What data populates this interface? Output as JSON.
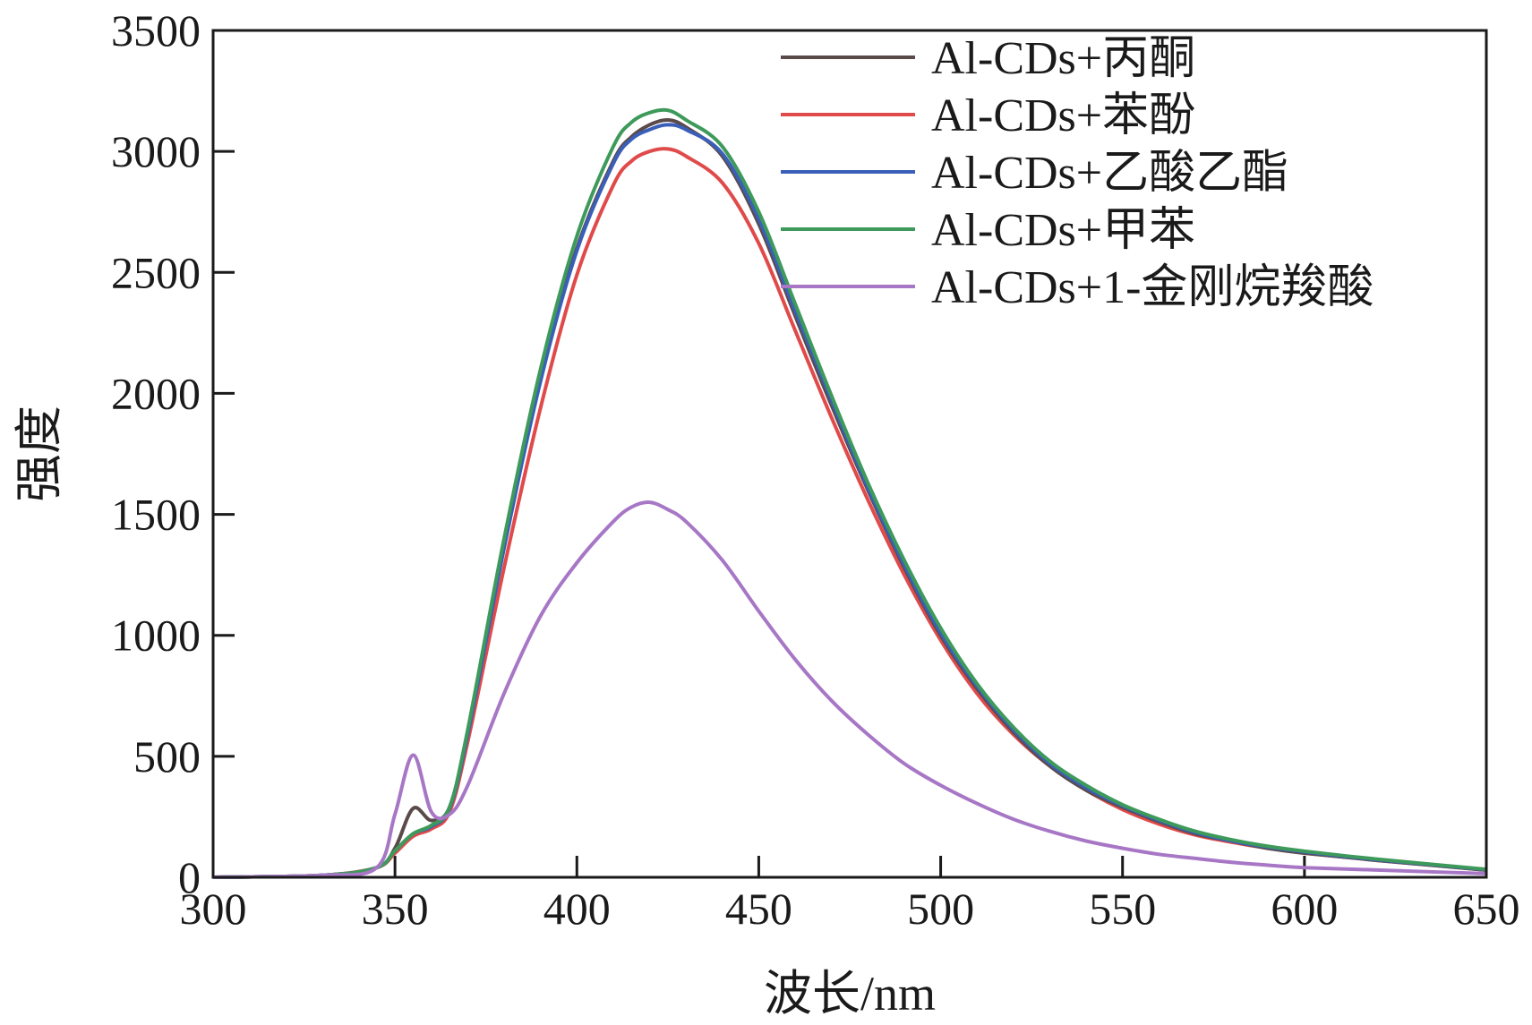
{
  "chart_data": {
    "type": "line",
    "xlabel": "波长/nm",
    "ylabel": "强度",
    "xlim": [
      300,
      650
    ],
    "ylim": [
      0,
      3500
    ],
    "x_ticks": [
      300,
      350,
      400,
      450,
      500,
      550,
      600,
      650
    ],
    "y_ticks": [
      0,
      500,
      1000,
      1500,
      2000,
      2500,
      3000,
      3500
    ],
    "grid": false,
    "legend_position": "top-right",
    "x": [
      300,
      330,
      345,
      350,
      355,
      360,
      365,
      370,
      380,
      390,
      400,
      410,
      415,
      420,
      425,
      430,
      440,
      450,
      460,
      470,
      480,
      490,
      500,
      510,
      520,
      530,
      540,
      550,
      560,
      570,
      580,
      590,
      600,
      620,
      650
    ],
    "series": [
      {
        "name": "Al-CDs+丙酮",
        "color": "#5b4a4a",
        "values": [
          0,
          8,
          40,
          120,
          285,
          235,
          290,
          600,
          1380,
          2070,
          2600,
          2960,
          3060,
          3110,
          3130,
          3100,
          2980,
          2700,
          2320,
          1950,
          1600,
          1280,
          1000,
          780,
          600,
          460,
          360,
          290,
          230,
          180,
          150,
          120,
          100,
          70,
          30
        ]
      },
      {
        "name": "Al-CDs+苯酚",
        "color": "#e04a4a",
        "values": [
          0,
          8,
          40,
          100,
          170,
          200,
          270,
          560,
          1280,
          1940,
          2490,
          2860,
          2960,
          3000,
          3010,
          2980,
          2870,
          2620,
          2260,
          1900,
          1560,
          1250,
          980,
          760,
          590,
          460,
          360,
          280,
          220,
          175,
          145,
          120,
          100,
          70,
          30
        ]
      },
      {
        "name": "Al-CDs+乙酸乙酯",
        "color": "#3a5fb8",
        "values": [
          0,
          8,
          40,
          110,
          180,
          210,
          285,
          590,
          1360,
          2050,
          2590,
          2950,
          3050,
          3090,
          3110,
          3090,
          2990,
          2720,
          2340,
          1970,
          1610,
          1290,
          1010,
          790,
          610,
          470,
          370,
          295,
          235,
          185,
          150,
          125,
          105,
          72,
          32
        ]
      },
      {
        "name": "Al-CDs+甲苯",
        "color": "#3e9a5a",
        "values": [
          0,
          8,
          40,
          110,
          180,
          215,
          290,
          610,
          1400,
          2100,
          2650,
          3020,
          3120,
          3160,
          3170,
          3130,
          3020,
          2750,
          2370,
          1990,
          1630,
          1310,
          1030,
          800,
          620,
          480,
          380,
          300,
          240,
          190,
          155,
          128,
          108,
          75,
          33
        ]
      },
      {
        "name": "Al-CDs+1-金刚烷羧酸",
        "color": "#a777c6",
        "values": [
          0,
          8,
          40,
          260,
          505,
          270,
          260,
          380,
          760,
          1080,
          1300,
          1470,
          1530,
          1550,
          1520,
          1470,
          1310,
          1100,
          900,
          730,
          590,
          470,
          380,
          305,
          240,
          190,
          150,
          120,
          95,
          78,
          62,
          50,
          40,
          30,
          15
        ]
      }
    ]
  }
}
